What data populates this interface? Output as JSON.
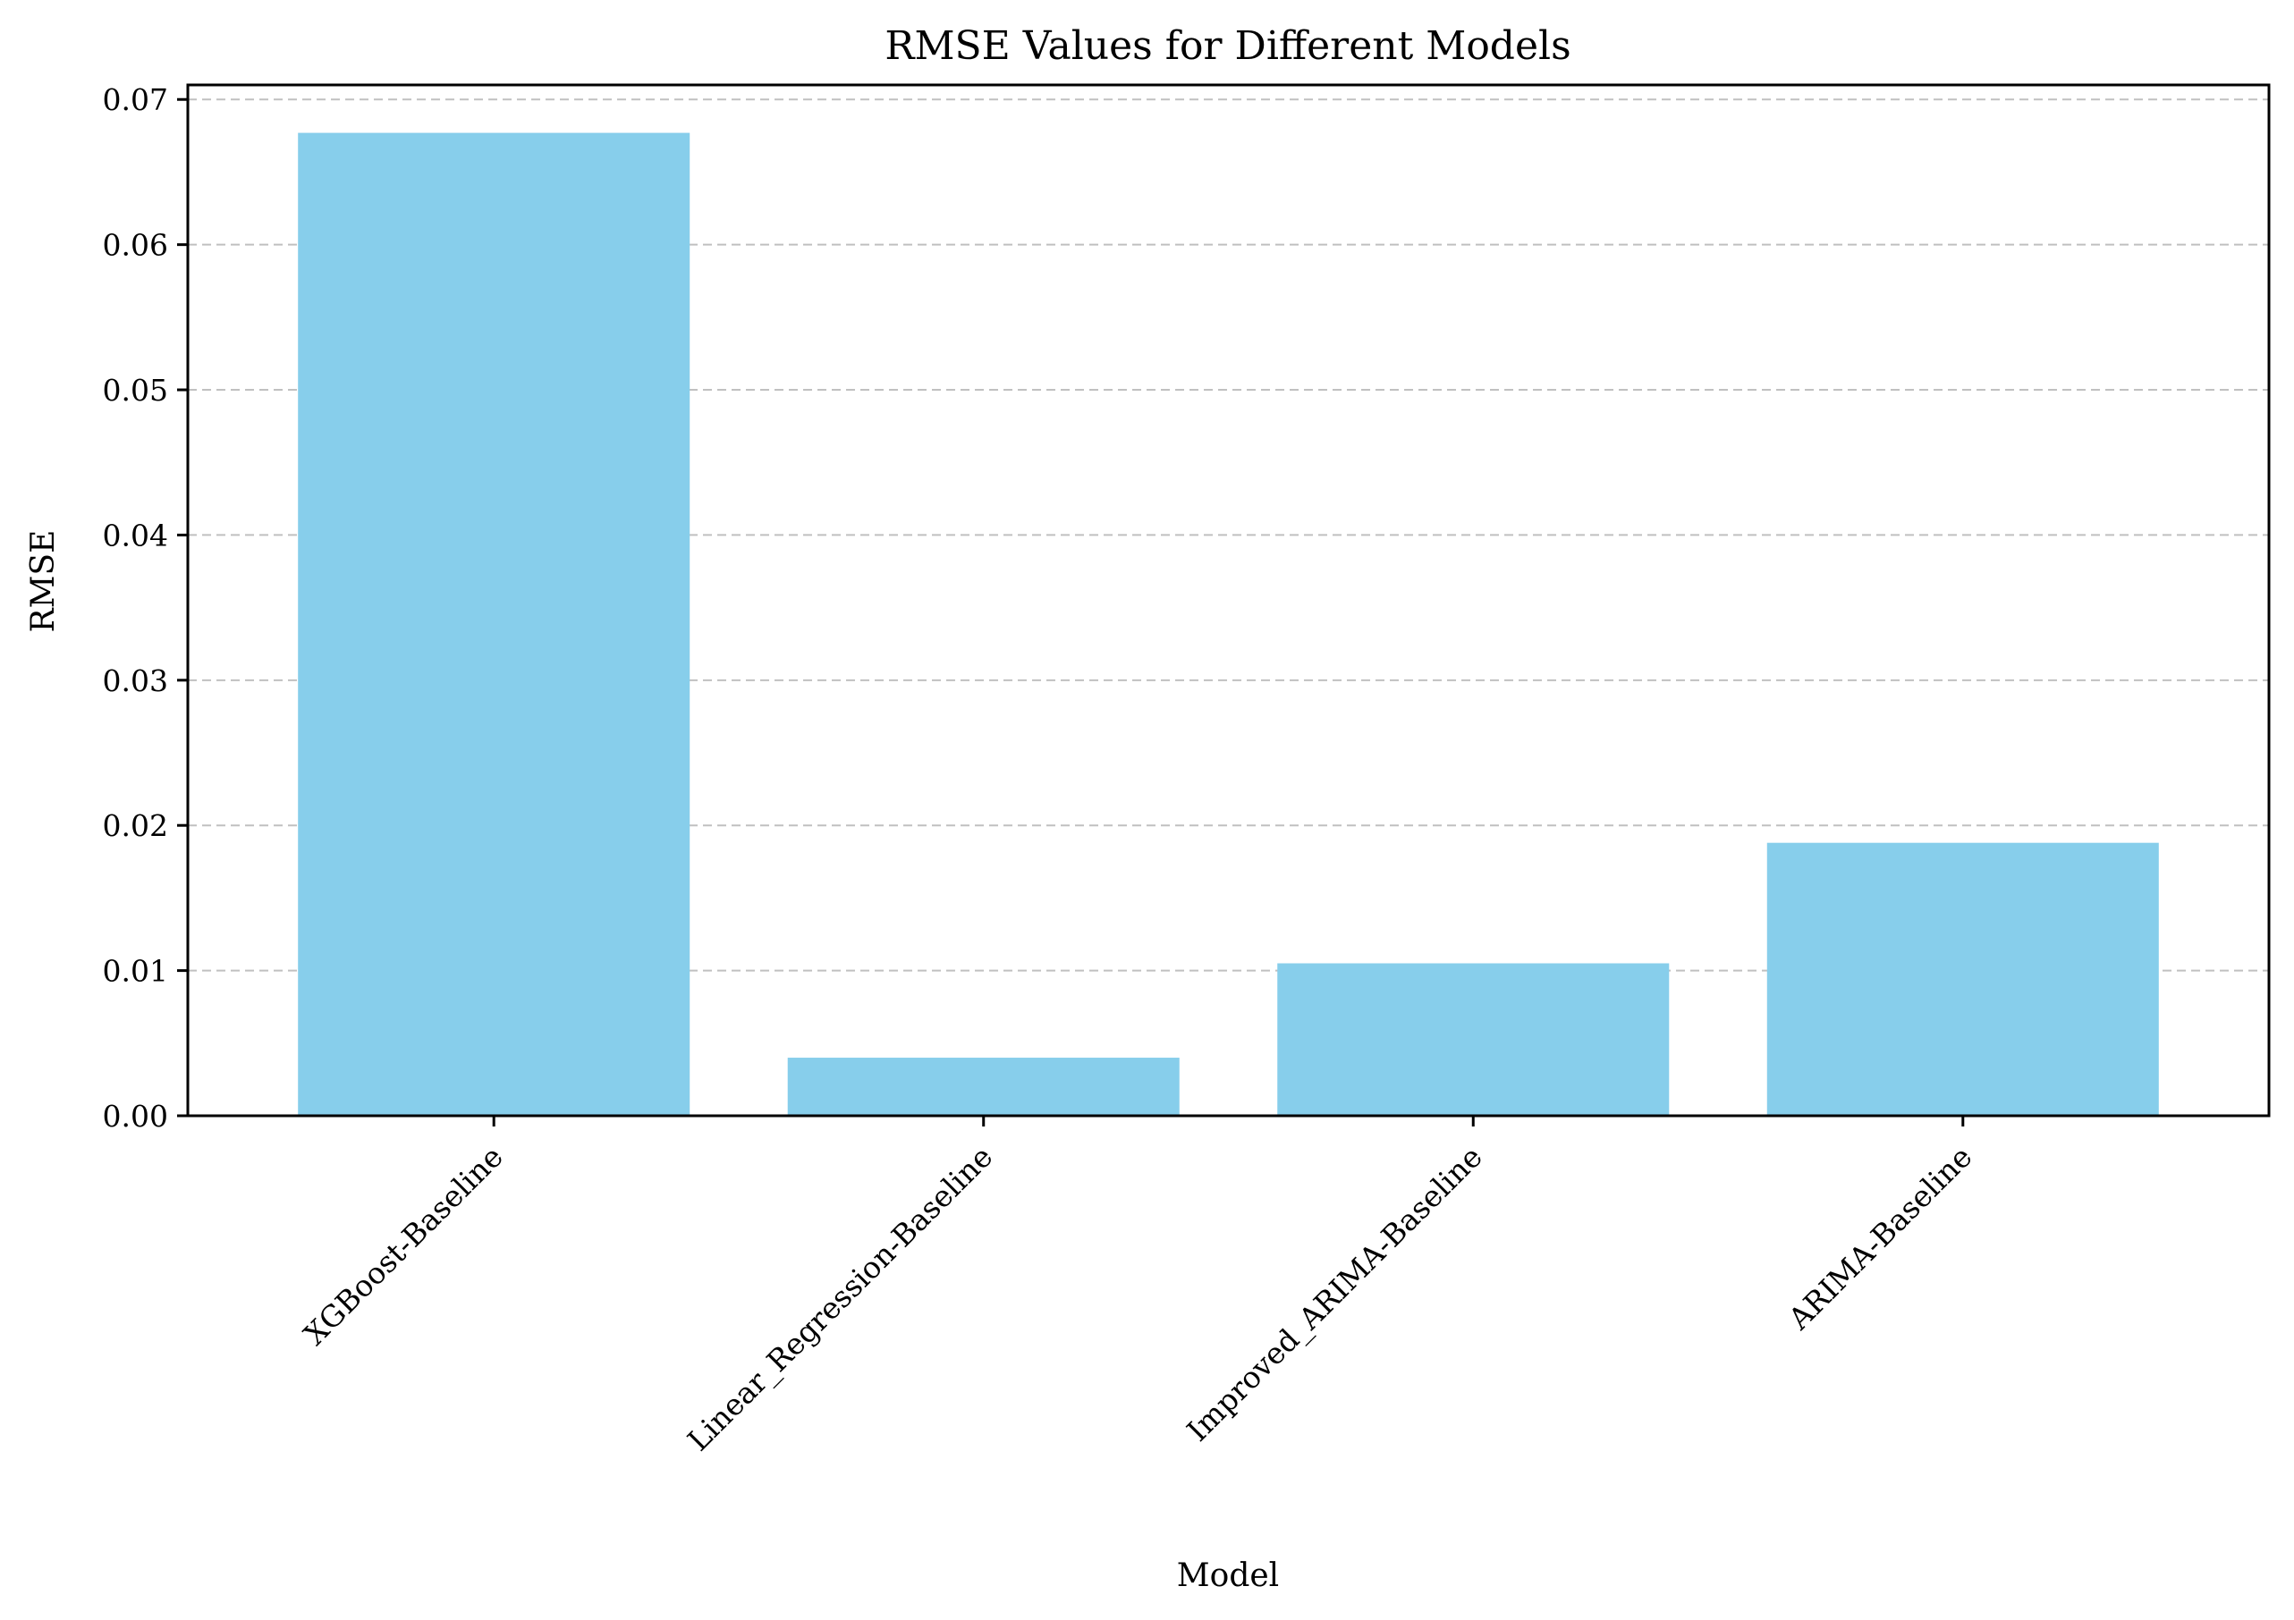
{
  "chart_data": {
    "type": "bar",
    "title": "RMSE Values for Different Models",
    "xlabel": "Model",
    "ylabel": "RMSE",
    "categories": [
      "XGBoost-Baseline",
      "Linear_Regression-Baseline",
      "Improved_ARIMA-Baseline",
      "ARIMA-Baseline"
    ],
    "values": [
      0.0677,
      0.004,
      0.0105,
      0.0188
    ],
    "ylim": [
      0,
      0.071
    ],
    "yticks": [
      "0.00",
      "0.01",
      "0.02",
      "0.03",
      "0.04",
      "0.05",
      "0.06",
      "0.07"
    ],
    "grid": "y-dashed",
    "legend": "none",
    "colors": {
      "bar": "#87ceeb",
      "grid": "#c0c0c0",
      "axis": "#000000"
    }
  }
}
